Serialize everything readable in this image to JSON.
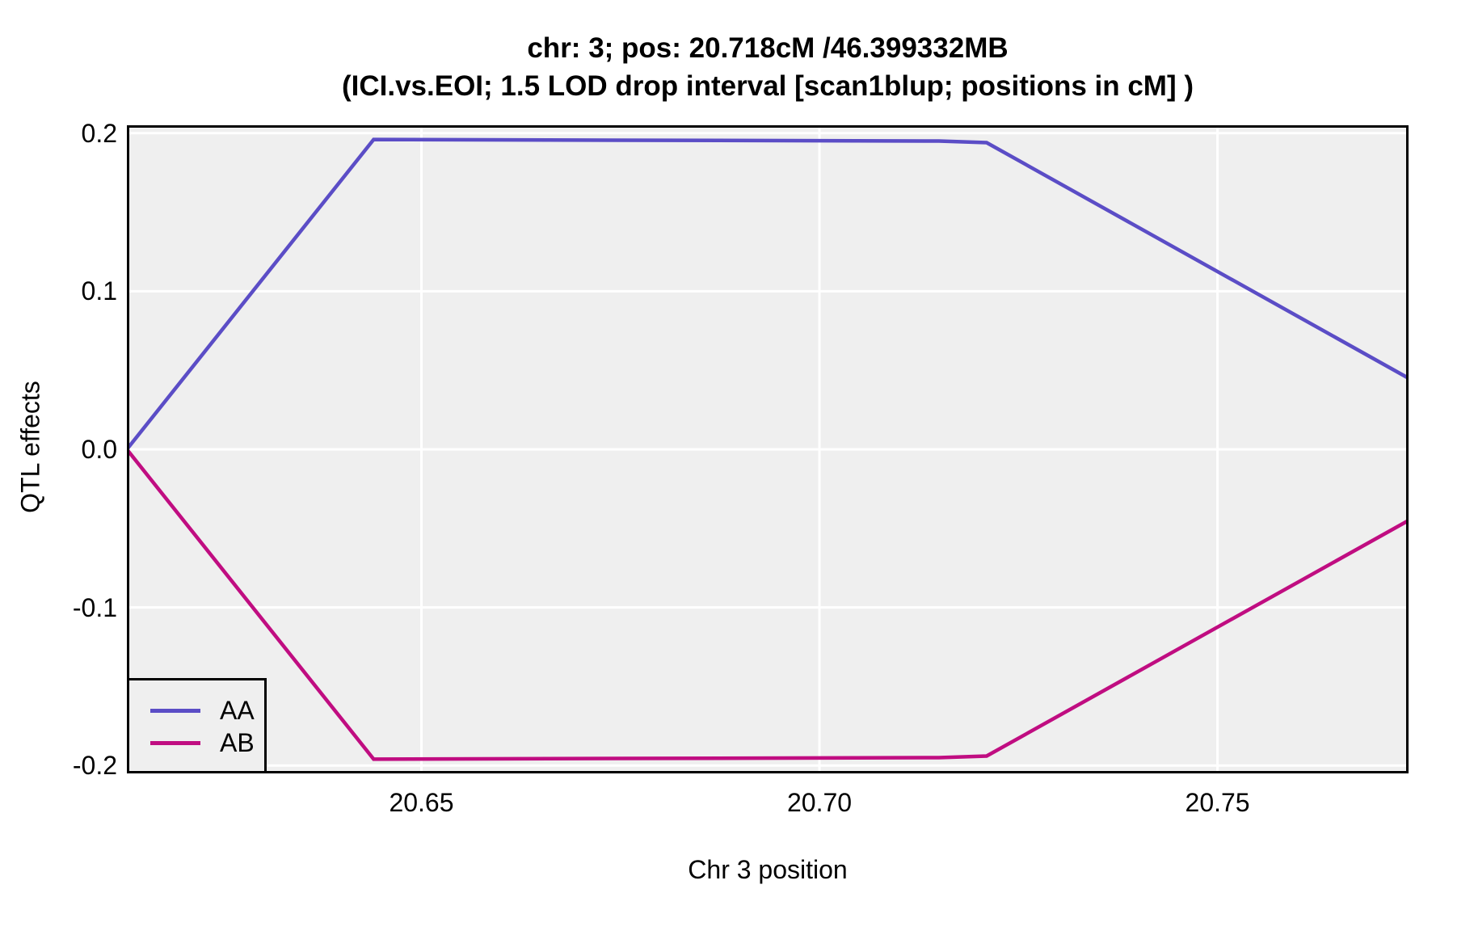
{
  "title": {
    "line1": "chr: 3; pos: 20.718cM /46.399332MB",
    "line2": "(ICI.vs.EOI; 1.5 LOD drop interval [scan1blup; positions in cM] )"
  },
  "chart_data": {
    "type": "line",
    "x": [
      20.613,
      20.644,
      20.715,
      20.721,
      20.774
    ],
    "series": [
      {
        "name": "AA",
        "color": "#5B4DC6",
        "values": [
          0.0,
          0.196,
          0.195,
          0.194,
          0.045
        ]
      },
      {
        "name": "AB",
        "color": "#C00D81",
        "values": [
          0.0,
          -0.196,
          -0.195,
          -0.194,
          -0.045
        ]
      }
    ],
    "xlabel": "Chr 3 position",
    "ylabel": "QTL effects",
    "xlim": [
      20.613,
      20.774
    ],
    "ylim": [
      -0.205,
      0.205
    ],
    "xticks": [
      20.65,
      20.7,
      20.75
    ],
    "xtick_labels": [
      "20.65",
      "20.70",
      "20.75"
    ],
    "yticks": [
      0.2,
      0.1,
      0.0,
      -0.1,
      -0.2
    ],
    "ytick_labels": [
      "0.2",
      "0.1",
      "0.0",
      "-0.1",
      "-0.2"
    ],
    "grid": true,
    "legend_position": "bottom-left",
    "panel_bg": "#EFEFEF",
    "grid_color": "#FFFFFF",
    "border_color": "#000000"
  }
}
